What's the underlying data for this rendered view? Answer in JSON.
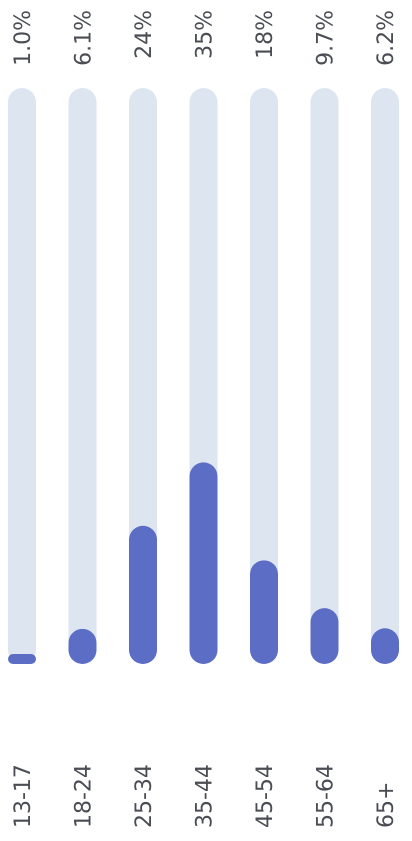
{
  "chart_data": {
    "type": "bar",
    "orientation": "vertical-rotated",
    "categories": [
      "13-17",
      "18-24",
      "25-34",
      "35-44",
      "45-54",
      "55-64",
      "65+"
    ],
    "values": [
      1.0,
      6.1,
      24,
      35,
      18,
      9.7,
      6.2
    ],
    "value_labels": [
      "1.0%",
      "6.1%",
      "24%",
      "35%",
      "18%",
      "9.7%",
      "6.2%"
    ],
    "unit": "%",
    "ylim": [
      0,
      100
    ],
    "grid": false,
    "legend": "none",
    "colors": {
      "bar": "#5b6dc4",
      "track": "#dde6f0",
      "text": "#4a4d54"
    }
  }
}
